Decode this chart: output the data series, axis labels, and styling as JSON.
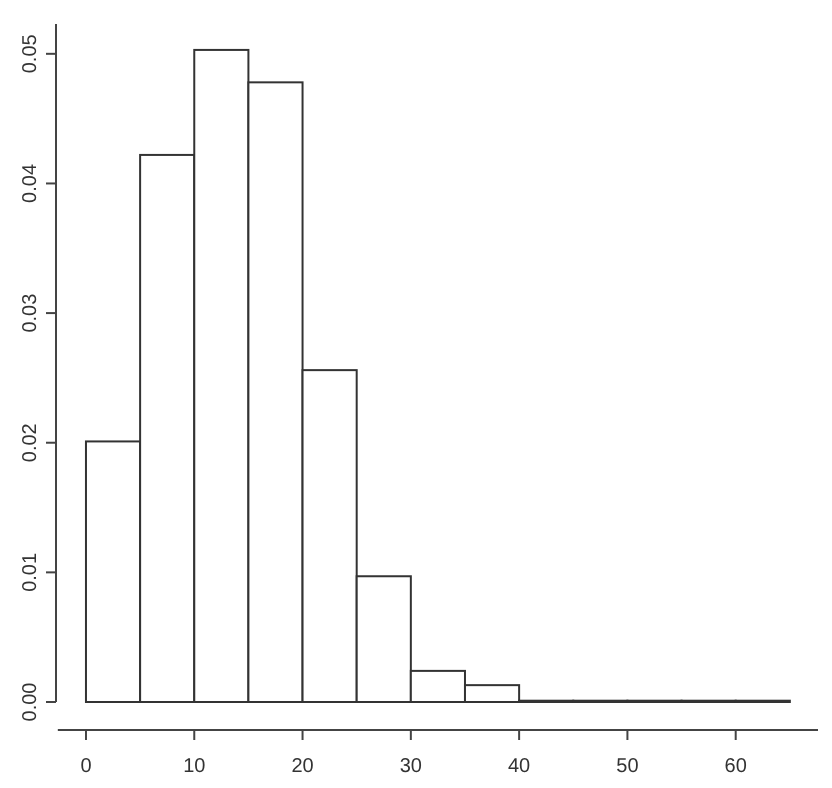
{
  "chart_data": {
    "type": "histogram",
    "bins": [
      0,
      5,
      10,
      15,
      20,
      25,
      30,
      35,
      40,
      45,
      50,
      55,
      60,
      65
    ],
    "values": [
      0.0201,
      0.0422,
      0.0503,
      0.0478,
      0.0256,
      0.0097,
      0.0024,
      0.0013,
      0.0001,
      0.0001,
      0.0001,
      0.0001,
      0.0001
    ],
    "color": "#ffffff",
    "xlim": [
      -2.6,
      67.6
    ],
    "xticks": [
      0,
      10,
      20,
      30,
      40,
      50,
      60
    ],
    "ylim": [
      0,
      0.0523
    ],
    "yticks": [
      {
        "value": 0,
        "label": "0.00"
      },
      {
        "value": 0.01,
        "label": "0.01"
      },
      {
        "value": 0.02,
        "label": "0.02"
      },
      {
        "value": 0.03,
        "label": "0.03"
      },
      {
        "value": 0.04,
        "label": "0.04"
      },
      {
        "value": 0.05,
        "label": "0.05"
      }
    ],
    "grid": false
  }
}
